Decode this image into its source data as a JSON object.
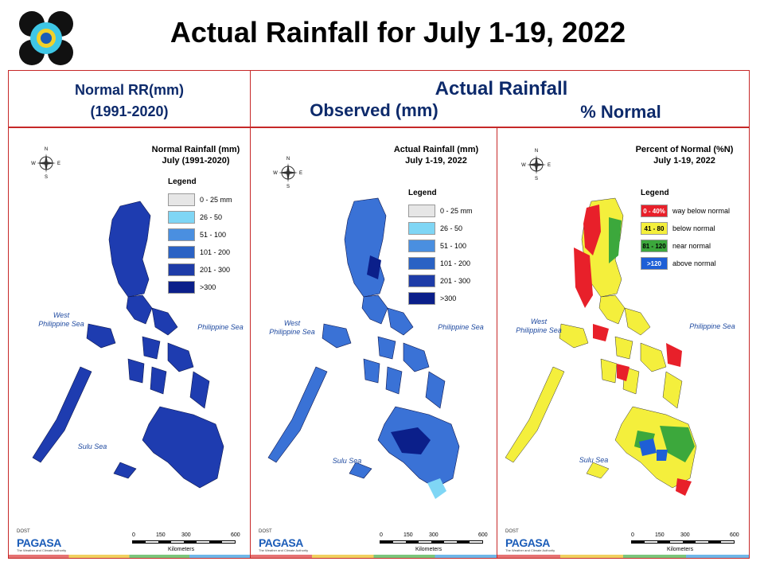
{
  "title": "Actual Rainfall for July 1-19, 2022",
  "header": {
    "normal_line1": "Normal RR(mm)",
    "normal_line2": "(1991-2020)",
    "actual": "Actual Rainfall",
    "observed": "Observed (mm)",
    "percent": "% Normal"
  },
  "panels": [
    {
      "title_line1": "Normal Rainfall (mm)",
      "title_line2": "July (1991-2020)",
      "legend_title": "Legend",
      "legend": [
        {
          "label": "0 - 25 mm",
          "color": "#e6e6e6"
        },
        {
          "label": "26 - 50",
          "color": "#7fd6f5"
        },
        {
          "label": "51 - 100",
          "color": "#4a8fe0"
        },
        {
          "label": "101 - 200",
          "color": "#2a62c4"
        },
        {
          "label": "201 - 300",
          "color": "#1e3ca8"
        },
        {
          "label": ">300",
          "color": "#0b1f8a"
        }
      ],
      "map_color": "#1e3cb0"
    },
    {
      "title_line1": "Actual Rainfall (mm)",
      "title_line2": "July 1-19, 2022",
      "legend_title": "Legend",
      "legend": [
        {
          "label": "0 - 25 mm",
          "color": "#e6e6e6"
        },
        {
          "label": "26 - 50",
          "color": "#7fd6f5"
        },
        {
          "label": "51 - 100",
          "color": "#4a8fe0"
        },
        {
          "label": "101 - 200",
          "color": "#2a62c4"
        },
        {
          "label": "201 - 300",
          "color": "#1e3ca8"
        },
        {
          "label": ">300",
          "color": "#0b1f8a"
        }
      ],
      "map_color": "#3a72d6"
    },
    {
      "title_line1": "Percent of Normal (%N)",
      "title_line2": "July 1-19, 2022",
      "legend_title": "Legend",
      "legend": [
        {
          "swatch": "0 - 40%",
          "label": "way below normal",
          "color": "#e8202a"
        },
        {
          "swatch": "41 - 80",
          "label": "below normal",
          "color": "#f4ef3c"
        },
        {
          "swatch": "81 - 120",
          "label": "near normal",
          "color": "#3ca83c"
        },
        {
          "swatch": ">120",
          "label": "above normal",
          "color": "#1e5fd6"
        }
      ],
      "map_color": "#f4ef3c"
    }
  ],
  "seas": {
    "west1": "West",
    "west2": "Philippine Sea",
    "philippine": "Philippine Sea",
    "sulu": "Sulu Sea"
  },
  "scale": {
    "t0": "0",
    "t1": "150",
    "t2": "300",
    "t3": "600",
    "unit": "Kilometers"
  },
  "agency": {
    "name": "PAGASA",
    "doost": "DOST",
    "tagline": "The Weather and Climate Authority"
  },
  "compass": {
    "n": "N",
    "s": "S",
    "e": "E",
    "w": "W"
  }
}
